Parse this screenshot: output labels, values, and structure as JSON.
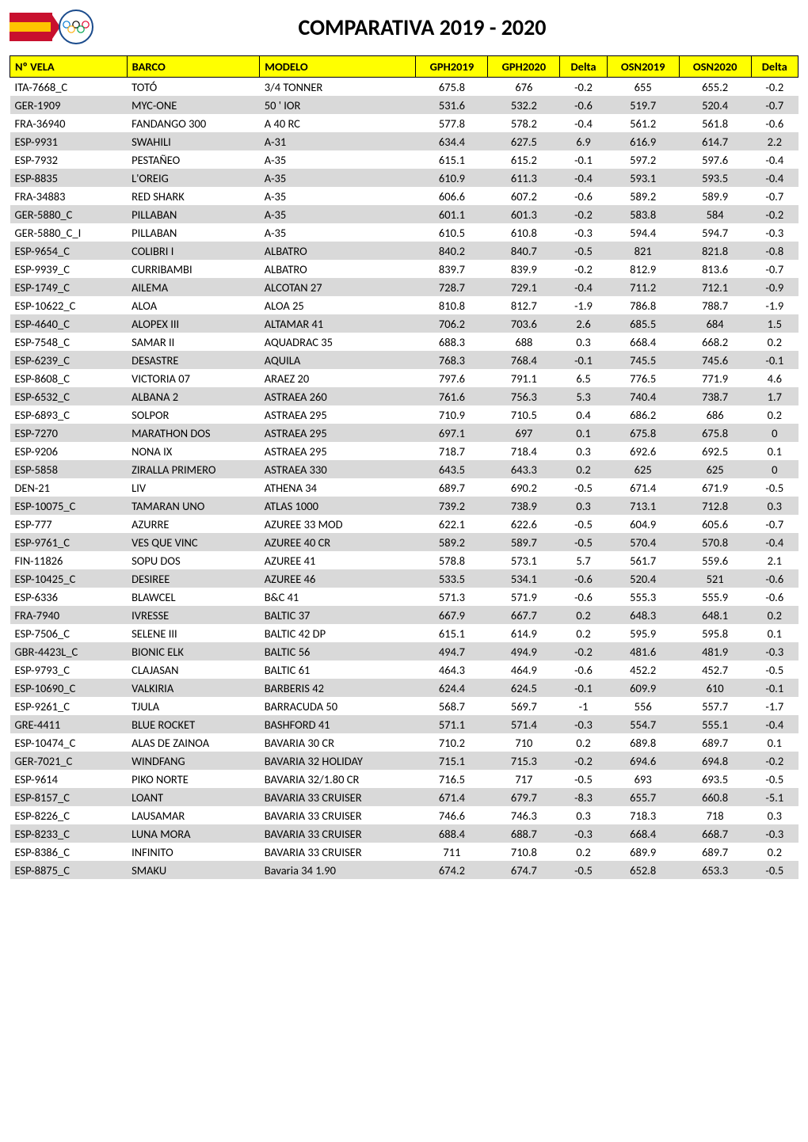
{
  "title": "COMPARATIVA 2019 - 2020",
  "columns": [
    {
      "key": "nvela",
      "label": "Nº VELA",
      "numeric": false
    },
    {
      "key": "barco",
      "label": "BARCO",
      "numeric": false
    },
    {
      "key": "modelo",
      "label": "MODELO",
      "numeric": false
    },
    {
      "key": "gph2019",
      "label": "GPH2019",
      "numeric": true
    },
    {
      "key": "gph2020",
      "label": "GPH2020",
      "numeric": true
    },
    {
      "key": "delta1",
      "label": "Delta",
      "numeric": true
    },
    {
      "key": "osn2019",
      "label": "OSN2019",
      "numeric": true
    },
    {
      "key": "osn2020",
      "label": "OSN2020",
      "numeric": true
    },
    {
      "key": "delta2",
      "label": "Delta",
      "numeric": true
    }
  ],
  "rows": [
    [
      "ITA-7668_C",
      "TOTÓ",
      "3/4 TONNER",
      "675.8",
      "676",
      "-0.2",
      "655",
      "655.2",
      "-0.2"
    ],
    [
      "GER-1909",
      "MYC-ONE",
      "50 ' IOR",
      "531.6",
      "532.2",
      "-0.6",
      "519.7",
      "520.4",
      "-0.7"
    ],
    [
      "FRA-36940",
      "FANDANGO 300",
      "A 40 RC",
      "577.8",
      "578.2",
      "-0.4",
      "561.2",
      "561.8",
      "-0.6"
    ],
    [
      "ESP-9931",
      "SWAHILI",
      "A-31",
      "634.4",
      "627.5",
      "6.9",
      "616.9",
      "614.7",
      "2.2"
    ],
    [
      "ESP-7932",
      "PESTAÑEO",
      "A-35",
      "615.1",
      "615.2",
      "-0.1",
      "597.2",
      "597.6",
      "-0.4"
    ],
    [
      "ESP-8835",
      "L'OREIG",
      "A-35",
      "610.9",
      "611.3",
      "-0.4",
      "593.1",
      "593.5",
      "-0.4"
    ],
    [
      "FRA-34883",
      "RED SHARK",
      "A-35",
      "606.6",
      "607.2",
      "-0.6",
      "589.2",
      "589.9",
      "-0.7"
    ],
    [
      "GER-5880_C",
      "PILLABAN",
      "A-35",
      "601.1",
      "601.3",
      "-0.2",
      "583.8",
      "584",
      "-0.2"
    ],
    [
      "GER-5880_C_I",
      "PILLABAN",
      "A-35",
      "610.5",
      "610.8",
      "-0.3",
      "594.4",
      "594.7",
      "-0.3"
    ],
    [
      "ESP-9654_C",
      "COLIBRI I",
      "ALBATRO",
      "840.2",
      "840.7",
      "-0.5",
      "821",
      "821.8",
      "-0.8"
    ],
    [
      "ESP-9939_C",
      "CURRIBAMBI",
      "ALBATRO",
      "839.7",
      "839.9",
      "-0.2",
      "812.9",
      "813.6",
      "-0.7"
    ],
    [
      "ESP-1749_C",
      "AILEMA",
      "ALCOTAN 27",
      "728.7",
      "729.1",
      "-0.4",
      "711.2",
      "712.1",
      "-0.9"
    ],
    [
      "ESP-10622_C",
      "ALOA",
      "ALOA 25",
      "810.8",
      "812.7",
      "-1.9",
      "786.8",
      "788.7",
      "-1.9"
    ],
    [
      "ESP-4640_C",
      "ALOPEX III",
      "ALTAMAR 41",
      "706.2",
      "703.6",
      "2.6",
      "685.5",
      "684",
      "1.5"
    ],
    [
      "ESP-7548_C",
      "SAMAR II",
      "AQUADRAC 35",
      "688.3",
      "688",
      "0.3",
      "668.4",
      "668.2",
      "0.2"
    ],
    [
      "ESP-6239_C",
      "DESASTRE",
      "AQUILA",
      "768.3",
      "768.4",
      "-0.1",
      "745.5",
      "745.6",
      "-0.1"
    ],
    [
      "ESP-8608_C",
      "VICTORIA 07",
      "ARAEZ 20",
      "797.6",
      "791.1",
      "6.5",
      "776.5",
      "771.9",
      "4.6"
    ],
    [
      "ESP-6532_C",
      "ALBANA 2",
      "ASTRAEA 260",
      "761.6",
      "756.3",
      "5.3",
      "740.4",
      "738.7",
      "1.7"
    ],
    [
      "ESP-6893_C",
      "SOLPOR",
      "ASTRAEA 295",
      "710.9",
      "710.5",
      "0.4",
      "686.2",
      "686",
      "0.2"
    ],
    [
      "ESP-7270",
      "MARATHON DOS",
      "ASTRAEA 295",
      "697.1",
      "697",
      "0.1",
      "675.8",
      "675.8",
      "0"
    ],
    [
      "ESP-9206",
      "NONA IX",
      "ASTRAEA 295",
      "718.7",
      "718.4",
      "0.3",
      "692.6",
      "692.5",
      "0.1"
    ],
    [
      "ESP-5858",
      "ZIRALLA PRIMERO",
      "ASTRAEA 330",
      "643.5",
      "643.3",
      "0.2",
      "625",
      "625",
      "0"
    ],
    [
      "DEN-21",
      "LIV",
      "ATHENA 34",
      "689.7",
      "690.2",
      "-0.5",
      "671.4",
      "671.9",
      "-0.5"
    ],
    [
      "ESP-10075_C",
      "TAMARAN UNO",
      "ATLAS 1000",
      "739.2",
      "738.9",
      "0.3",
      "713.1",
      "712.8",
      "0.3"
    ],
    [
      "ESP-777",
      "AZURRE",
      "AZUREE 33 MOD",
      "622.1",
      "622.6",
      "-0.5",
      "604.9",
      "605.6",
      "-0.7"
    ],
    [
      "ESP-9761_C",
      "VES QUE VINC",
      "AZUREE 40 CR",
      "589.2",
      "589.7",
      "-0.5",
      "570.4",
      "570.8",
      "-0.4"
    ],
    [
      "FIN-11826",
      "SOPU DOS",
      "AZUREE 41",
      "578.8",
      "573.1",
      "5.7",
      "561.7",
      "559.6",
      "2.1"
    ],
    [
      "ESP-10425_C",
      "DESIREE",
      "AZUREE 46",
      "533.5",
      "534.1",
      "-0.6",
      "520.4",
      "521",
      "-0.6"
    ],
    [
      "ESP-6336",
      "BLAWCEL",
      "B&C 41",
      "571.3",
      "571.9",
      "-0.6",
      "555.3",
      "555.9",
      "-0.6"
    ],
    [
      "FRA-7940",
      "IVRESSE",
      "BALTIC 37",
      "667.9",
      "667.7",
      "0.2",
      "648.3",
      "648.1",
      "0.2"
    ],
    [
      "ESP-7506_C",
      "SELENE III",
      "BALTIC 42 DP",
      "615.1",
      "614.9",
      "0.2",
      "595.9",
      "595.8",
      "0.1"
    ],
    [
      "GBR-4423L_C",
      "BIONIC ELK",
      "BALTIC 56",
      "494.7",
      "494.9",
      "-0.2",
      "481.6",
      "481.9",
      "-0.3"
    ],
    [
      "ESP-9793_C",
      "CLAJASAN",
      "BALTIC 61",
      "464.3",
      "464.9",
      "-0.6",
      "452.2",
      "452.7",
      "-0.5"
    ],
    [
      "ESP-10690_C",
      "VALKIRIA",
      "BARBERIS 42",
      "624.4",
      "624.5",
      "-0.1",
      "609.9",
      "610",
      "-0.1"
    ],
    [
      "ESP-9261_C",
      "TJULA",
      "BARRACUDA 50",
      "568.7",
      "569.7",
      "-1",
      "556",
      "557.7",
      "-1.7"
    ],
    [
      "GRE-4411",
      "BLUE ROCKET",
      "BASHFORD 41",
      "571.1",
      "571.4",
      "-0.3",
      "554.7",
      "555.1",
      "-0.4"
    ],
    [
      "ESP-10474_C",
      "ALAS DE ZAINOA",
      "BAVARIA 30 CR",
      "710.2",
      "710",
      "0.2",
      "689.8",
      "689.7",
      "0.1"
    ],
    [
      "GER-7021_C",
      "WINDFANG",
      "BAVARIA 32 HOLIDAY",
      "715.1",
      "715.3",
      "-0.2",
      "694.6",
      "694.8",
      "-0.2"
    ],
    [
      "ESP-9614",
      "PIKO NORTE",
      "BAVARIA 32/1.80 CR",
      "716.5",
      "717",
      "-0.5",
      "693",
      "693.5",
      "-0.5"
    ],
    [
      "ESP-8157_C",
      "LOANT",
      "BAVARIA 33 CRUISER",
      "671.4",
      "679.7",
      "-8.3",
      "655.7",
      "660.8",
      "-5.1"
    ],
    [
      "ESP-8226_C",
      "LAUSAMAR",
      "BAVARIA 33 CRUISER",
      "746.6",
      "746.3",
      "0.3",
      "718.3",
      "718",
      "0.3"
    ],
    [
      "ESP-8233_C",
      "LUNA MORA",
      "BAVARIA 33 CRUISER",
      "688.4",
      "688.7",
      "-0.3",
      "668.4",
      "668.7",
      "-0.3"
    ],
    [
      "ESP-8386_C",
      "INFINITO",
      "BAVARIA 33 CRUISER",
      "711",
      "710.8",
      "0.2",
      "689.9",
      "689.7",
      "0.2"
    ],
    [
      "ESP-8875_C",
      "SMAKU",
      "Bavaria 34 1.90",
      "674.2",
      "674.7",
      "-0.5",
      "652.8",
      "653.3",
      "-0.5"
    ]
  ],
  "styling": {
    "page_bg": "#ffffff",
    "header_bg": "#ffff00",
    "row_even_bg": "#d9d9d9",
    "row_odd_bg": "#ffffff",
    "border_color": "#000000",
    "title_fontsize": 28,
    "body_fontsize": 14.5,
    "font_family": "Calibri",
    "flag_red": "#c8102e",
    "flag_yellow": "#ffc400",
    "rings_blue": "#1a4b8c"
  }
}
